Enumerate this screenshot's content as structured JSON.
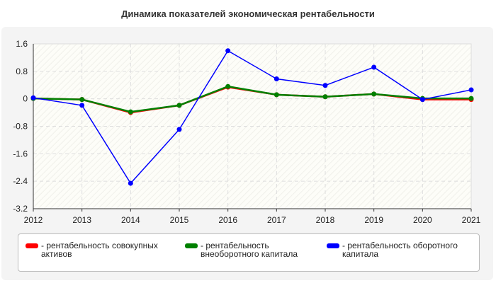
{
  "chart_data": {
    "type": "line",
    "title": "Динамика показателей экономическая рентабельности",
    "categories": [
      "2012",
      "2013",
      "2014",
      "2015",
      "2016",
      "2017",
      "2018",
      "2019",
      "2020",
      "2021"
    ],
    "yticks": [
      "1.6",
      "0.8",
      "0",
      "-0.8",
      "-1.6",
      "-2.4",
      "-3.2"
    ],
    "ylim": [
      -3.2,
      1.6
    ],
    "grid": true,
    "legend_position": "bottom",
    "series": [
      {
        "name": "- рентабельность совокупных активов",
        "color": "#ff0000",
        "values": [
          0.01,
          -0.02,
          -0.4,
          -0.19,
          0.34,
          0.12,
          0.06,
          0.14,
          -0.02,
          -0.02
        ]
      },
      {
        "name": "- рентабельность внеоборотного капитала",
        "color": "#008000",
        "values": [
          0.01,
          -0.02,
          -0.38,
          -0.19,
          0.36,
          0.12,
          0.06,
          0.14,
          0.01,
          0.01
        ]
      },
      {
        "name": "- рентабельность оборотного капитала",
        "color": "#0000ff",
        "values": [
          0.03,
          -0.19,
          -2.46,
          -0.89,
          1.4,
          0.58,
          0.39,
          0.92,
          -0.02,
          0.26
        ]
      }
    ]
  }
}
